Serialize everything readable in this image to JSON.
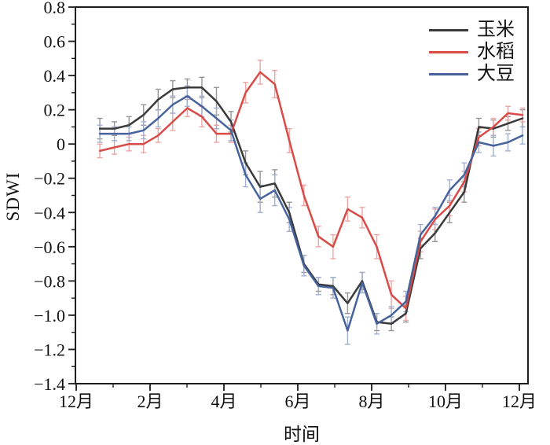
{
  "chart_data": {
    "type": "line",
    "title": "",
    "xlabel": "时间",
    "ylabel": "SDWI",
    "ylim": [
      -1.4,
      0.8
    ],
    "xlim_months": [
      0,
      12.23
    ],
    "grid": false,
    "legend_position": "top-right",
    "y_tick_labels": [
      "0.8",
      "0.6",
      "0.4",
      "0.2",
      "0",
      "−0.2",
      "−0.4",
      "−0.6",
      "−0.8",
      "−1.0",
      "−1.2",
      "−1.4"
    ],
    "y_major_step": 0.2,
    "y_minor_step": 0.1,
    "x_tick_labels": [
      "12月",
      "2月",
      "4月",
      "6月",
      "8月",
      "10月",
      "12月"
    ],
    "x_major_every_months": 2,
    "x_minor_every_months": 1,
    "x_start_month": 0.64,
    "x_step_month": 0.3947,
    "points_per_series": 30,
    "series": [
      {
        "name": "玉米",
        "id": "corn",
        "color": "#3a3a3a",
        "err_color": "#979797",
        "values": [
          0.09,
          0.09,
          0.11,
          0.17,
          0.26,
          0.32,
          0.33,
          0.33,
          0.25,
          0.13,
          -0.11,
          -0.25,
          -0.23,
          -0.4,
          -0.7,
          -0.82,
          -0.83,
          -0.93,
          -0.8,
          -1.04,
          -1.05,
          -0.99,
          -0.61,
          -0.52,
          -0.4,
          -0.28,
          0.1,
          0.09,
          0.12,
          0.15
        ],
        "errors": [
          0.06,
          0.04,
          0.05,
          0.06,
          0.06,
          0.05,
          0.05,
          0.06,
          0.08,
          0.06,
          0.07,
          0.09,
          0.08,
          0.06,
          0.05,
          0.04,
          0.05,
          0.06,
          0.05,
          0.05,
          0.04,
          0.05,
          0.06,
          0.05,
          0.06,
          0.06,
          0.05,
          0.05,
          0.04,
          0.05
        ]
      },
      {
        "name": "水稻",
        "id": "rice",
        "color": "#d94b47",
        "err_color": "#eda6a4",
        "values": [
          -0.04,
          -0.02,
          0.0,
          0.0,
          0.05,
          0.13,
          0.21,
          0.16,
          0.06,
          0.06,
          0.3,
          0.42,
          0.35,
          0.02,
          -0.3,
          -0.54,
          -0.6,
          -0.38,
          -0.43,
          -0.6,
          -0.88,
          -0.96,
          -0.57,
          -0.44,
          -0.36,
          -0.22,
          0.04,
          0.1,
          0.18,
          0.17
        ],
        "errors": [
          0.04,
          0.04,
          0.04,
          0.05,
          0.04,
          0.05,
          0.05,
          0.06,
          0.05,
          0.05,
          0.06,
          0.07,
          0.08,
          0.07,
          0.06,
          0.06,
          0.07,
          0.07,
          0.06,
          0.07,
          0.08,
          0.07,
          0.06,
          0.06,
          0.06,
          0.06,
          0.05,
          0.05,
          0.04,
          0.04
        ]
      },
      {
        "name": "大豆",
        "id": "soybean",
        "color": "#46639c",
        "err_color": "#a2b0d0",
        "values": [
          0.06,
          0.06,
          0.06,
          0.08,
          0.15,
          0.23,
          0.28,
          0.22,
          0.15,
          0.08,
          -0.18,
          -0.32,
          -0.27,
          -0.44,
          -0.71,
          -0.83,
          -0.84,
          -1.09,
          -0.81,
          -1.05,
          -1.0,
          -0.92,
          -0.53,
          -0.42,
          -0.27,
          -0.18,
          0.01,
          -0.01,
          0.01,
          0.05
        ],
        "errors": [
          0.05,
          0.04,
          0.04,
          0.05,
          0.05,
          0.05,
          0.06,
          0.06,
          0.06,
          0.06,
          0.07,
          0.08,
          0.09,
          0.07,
          0.06,
          0.05,
          0.06,
          0.08,
          0.06,
          0.06,
          0.05,
          0.06,
          0.06,
          0.05,
          0.06,
          0.07,
          0.06,
          0.06,
          0.05,
          0.05
        ]
      }
    ]
  }
}
